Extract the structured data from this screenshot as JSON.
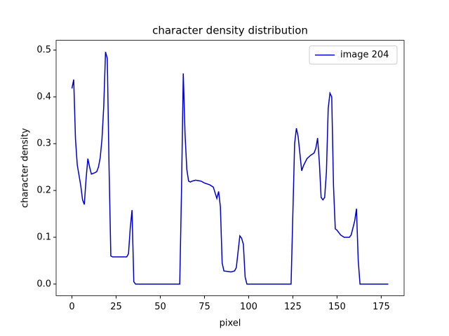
{
  "chart_data": {
    "type": "line",
    "title": "character density distribution",
    "x_label": "pixel",
    "y_label": "character density",
    "legend_loc": "upper right",
    "xlim": [
      -8.95,
      187.95
    ],
    "xticks": [
      0,
      25,
      50,
      75,
      100,
      125,
      150,
      175
    ],
    "ylim": [
      -0.0248,
      0.5208
    ],
    "yticks": [
      {
        "value": 0,
        "label": "0.0"
      },
      0.1,
      0.2,
      0.3,
      0.4,
      0.5
    ],
    "x": [
      0,
      1,
      2,
      3,
      5,
      6,
      7,
      8,
      9,
      10,
      11,
      13,
      14,
      15,
      16,
      17,
      18,
      19,
      20,
      21,
      22,
      23,
      31,
      32,
      33,
      34,
      35,
      36,
      61,
      62,
      63,
      64,
      65,
      66,
      67,
      68,
      70,
      73,
      75,
      78,
      80,
      81,
      82,
      83,
      84,
      85,
      86,
      88,
      90,
      92,
      93,
      95,
      96,
      97,
      98,
      99,
      124,
      126,
      127,
      128,
      130,
      131,
      133,
      135,
      137,
      138,
      139,
      140,
      141,
      142,
      143,
      144,
      145,
      146,
      147,
      148,
      149,
      150,
      152,
      154,
      157,
      158,
      160,
      161,
      162,
      163,
      179
    ],
    "series": [
      {
        "name": "image 204",
        "color": "#0000cd",
        "values": [
          0.418,
          0.437,
          0.31,
          0.255,
          0.21,
          0.18,
          0.17,
          0.225,
          0.268,
          0.25,
          0.235,
          0.238,
          0.24,
          0.25,
          0.27,
          0.31,
          0.38,
          0.496,
          0.482,
          0.25,
          0.06,
          0.058,
          0.058,
          0.065,
          0.12,
          0.158,
          0.005,
          0,
          0,
          0.2,
          0.45,
          0.32,
          0.245,
          0.22,
          0.218,
          0.22,
          0.222,
          0.22,
          0.216,
          0.212,
          0.207,
          0.195,
          0.183,
          0.198,
          0.165,
          0.045,
          0.028,
          0.027,
          0.026,
          0.028,
          0.035,
          0.103,
          0.098,
          0.085,
          0.015,
          0,
          0,
          0.3,
          0.333,
          0.315,
          0.242,
          0.253,
          0.268,
          0.275,
          0.28,
          0.29,
          0.312,
          0.26,
          0.185,
          0.18,
          0.185,
          0.24,
          0.375,
          0.408,
          0.4,
          0.21,
          0.118,
          0.115,
          0.105,
          0.1,
          0.1,
          0.105,
          0.135,
          0.161,
          0.05,
          0,
          0
        ]
      }
    ]
  }
}
